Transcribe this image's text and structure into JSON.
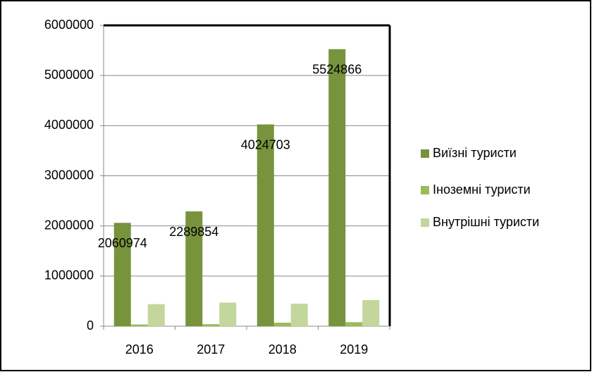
{
  "chart_data": {
    "type": "bar",
    "categories": [
      "2016",
      "2017",
      "2018",
      "2019"
    ],
    "series": [
      {
        "name": "Виїзні туристи",
        "color": "#77933c",
        "values": [
          2060974,
          2289854,
          4024703,
          5524866
        ],
        "show_labels": true
      },
      {
        "name": "Іноземні туристи",
        "color": "#9bbb59",
        "values": [
          35000,
          40000,
          70000,
          80000
        ]
      },
      {
        "name": "Внутрішні туристи",
        "color": "#c3d69b",
        "values": [
          440000,
          470000,
          450000,
          520000
        ]
      }
    ],
    "ylim": [
      0,
      6000000
    ],
    "yticks": [
      0,
      1000000,
      2000000,
      3000000,
      4000000,
      5000000,
      6000000
    ],
    "grid": true,
    "legend": "right"
  }
}
